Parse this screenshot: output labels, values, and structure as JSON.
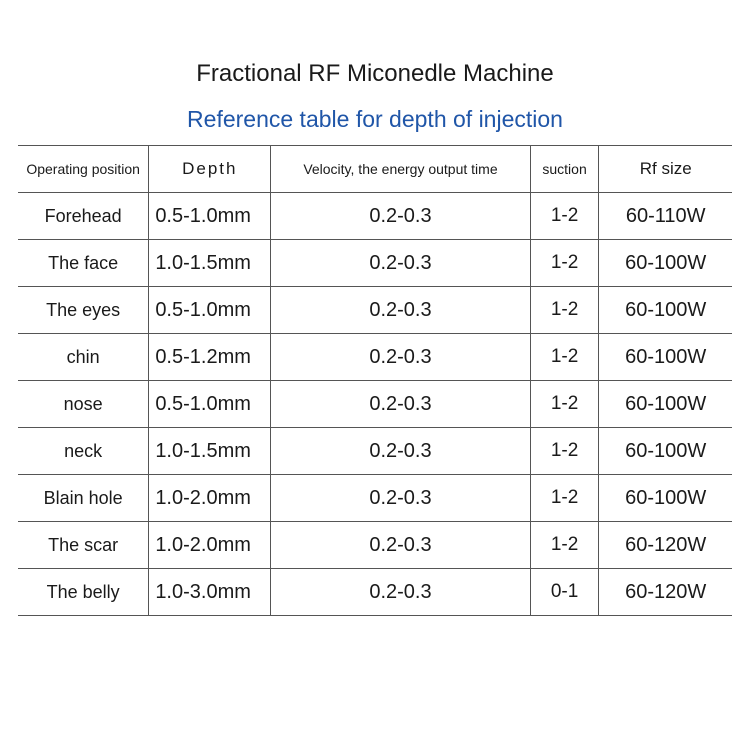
{
  "title": "Fractional RF Miconedle Machine",
  "subtitle": "Reference table for depth of injection",
  "columns": [
    "Operating position",
    "Depth",
    "Velocity, the energy output time",
    "suction",
    "Rf size"
  ],
  "rows": [
    {
      "op": "Forehead",
      "depth": "0.5-1.0mm",
      "velocity": "0.2-0.3",
      "suction": "1-2",
      "rf": "60-110W"
    },
    {
      "op": "The face",
      "depth": "1.0-1.5mm",
      "velocity": "0.2-0.3",
      "suction": "1-2",
      "rf": "60-100W"
    },
    {
      "op": "The eyes",
      "depth": "0.5-1.0mm",
      "velocity": "0.2-0.3",
      "suction": "1-2",
      "rf": "60-100W"
    },
    {
      "op": "chin",
      "depth": "0.5-1.2mm",
      "velocity": "0.2-0.3",
      "suction": "1-2",
      "rf": "60-100W"
    },
    {
      "op": "nose",
      "depth": "0.5-1.0mm",
      "velocity": "0.2-0.3",
      "suction": "1-2",
      "rf": "60-100W"
    },
    {
      "op": "neck",
      "depth": "1.0-1.5mm",
      "velocity": "0.2-0.3",
      "suction": "1-2",
      "rf": "60-100W"
    },
    {
      "op": "Blain hole",
      "depth": "1.0-2.0mm",
      "velocity": "0.2-0.3",
      "suction": "1-2",
      "rf": "60-100W"
    },
    {
      "op": "The scar",
      "depth": "1.0-2.0mm",
      "velocity": "0.2-0.3",
      "suction": "1-2",
      "rf": "60-120W"
    },
    {
      "op": "The belly",
      "depth": "1.0-3.0mm",
      "velocity": "0.2-0.3",
      "suction": "0-1",
      "rf": "60-120W"
    }
  ],
  "colors": {
    "title_color": "#1a1a1a",
    "subtitle_color": "#2056a8",
    "border_color": "#555555",
    "background_color": "#ffffff"
  },
  "typography": {
    "title_fontsize": 24,
    "subtitle_fontsize": 23,
    "header_fontsize": 15,
    "cell_fontsize": 20
  }
}
